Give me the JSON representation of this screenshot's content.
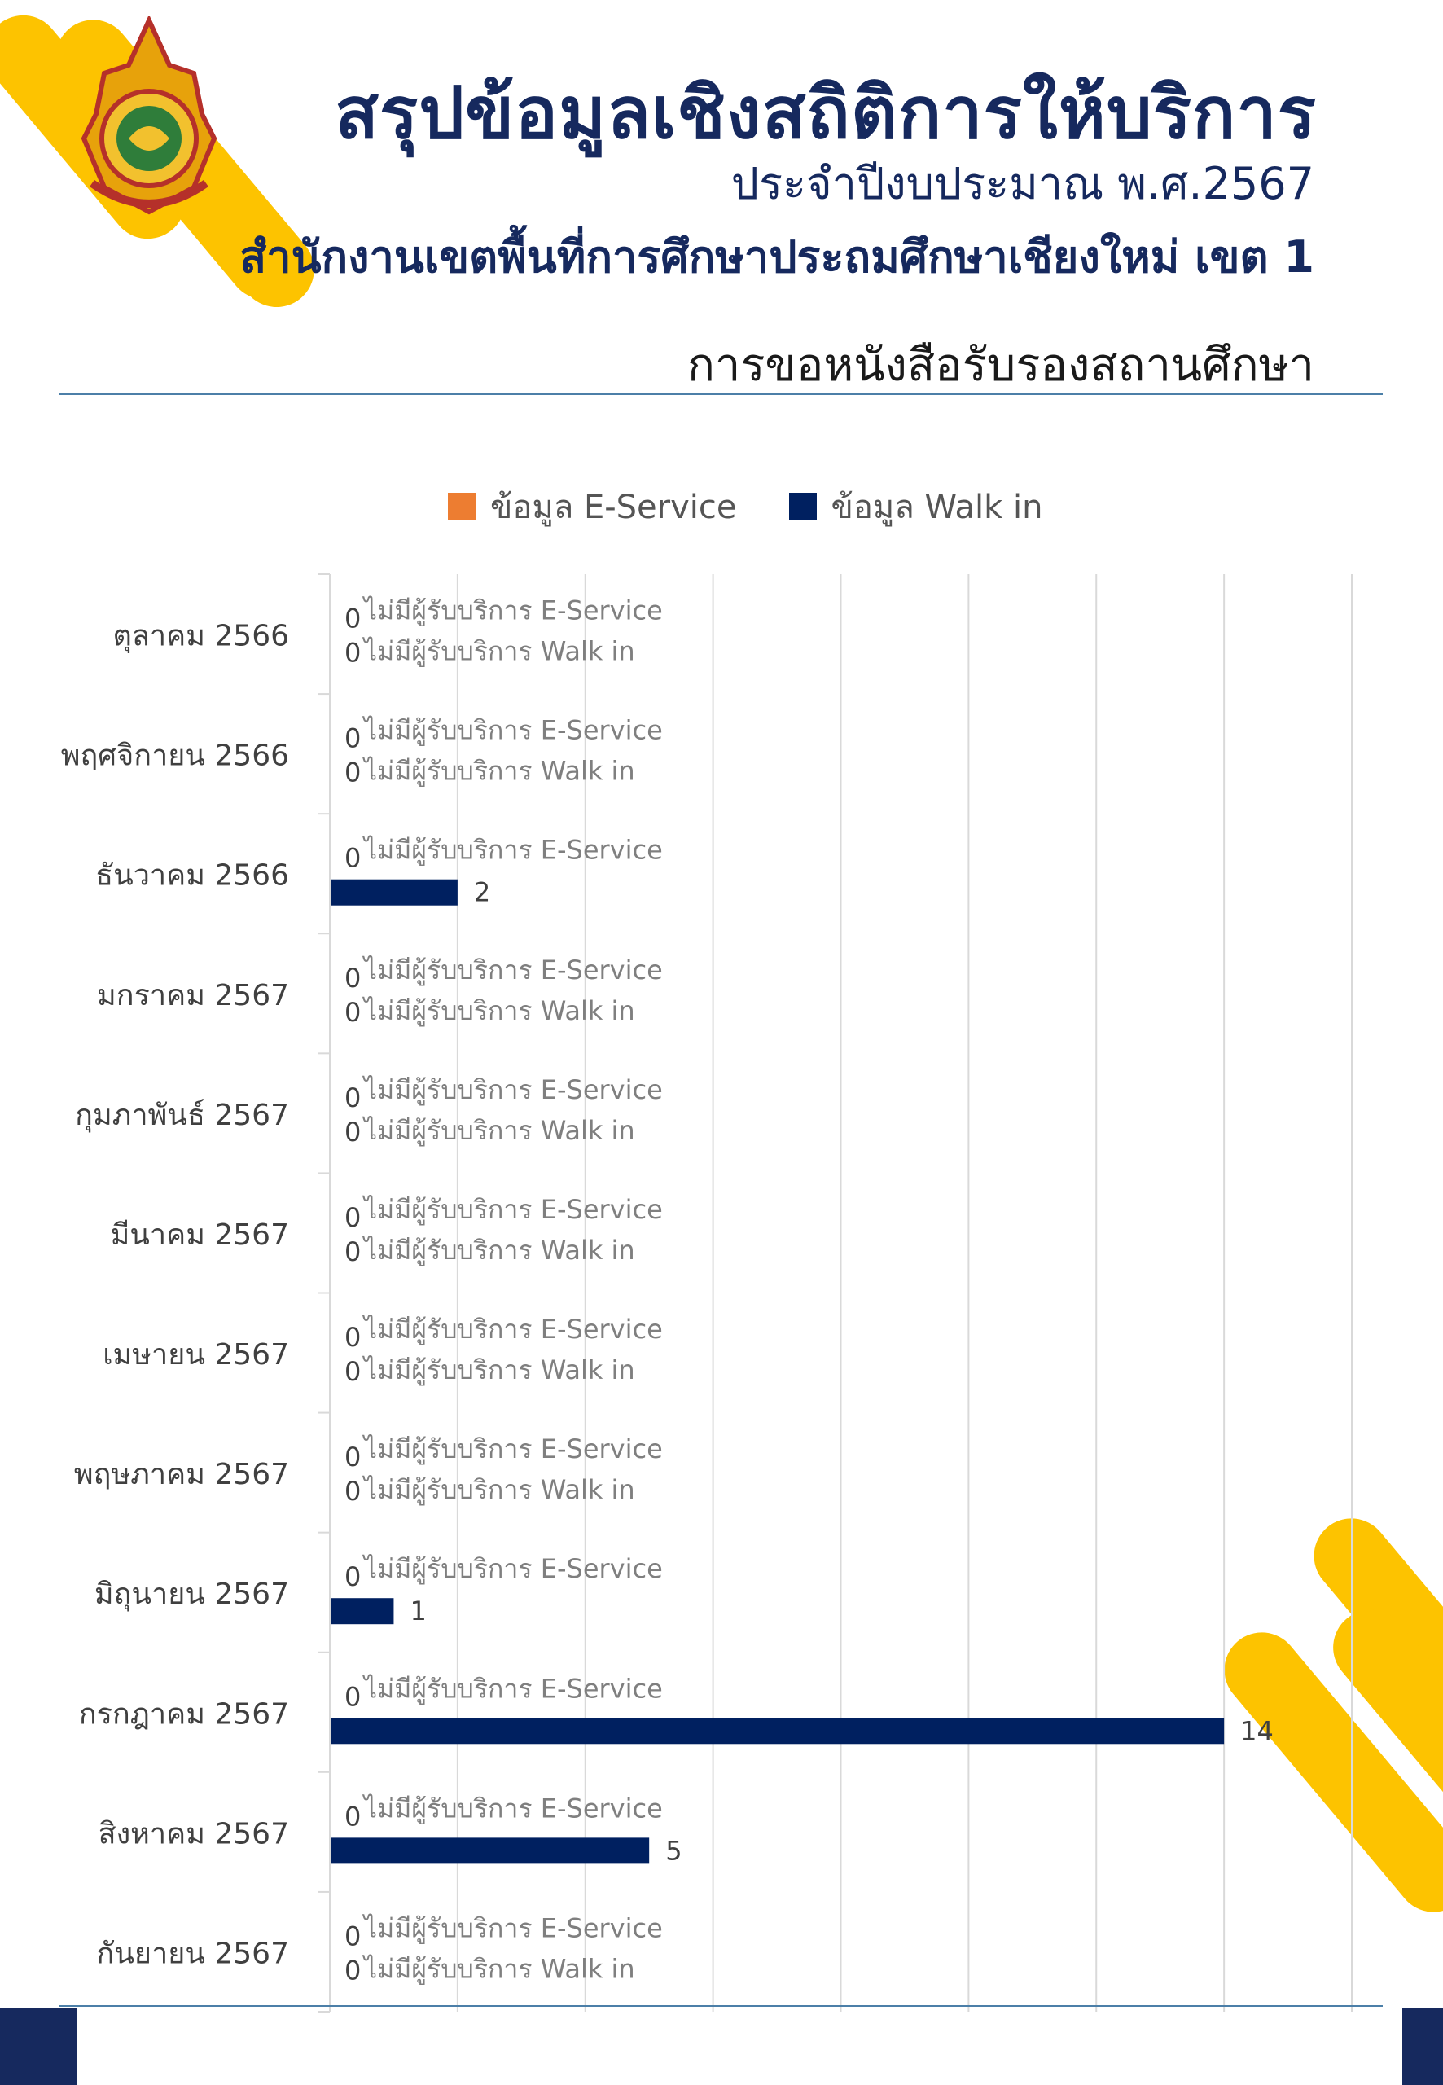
{
  "header": {
    "title": "สรุปข้อมูลเชิงสถิติการให้บริการ",
    "subtitle": "ประจำปีงบประมาณ พ.ศ.2567",
    "office": "สำนักงานเขตพื้นที่การศึกษาประถมศึกษาเชียงใหม่ เขต 1",
    "section": "การขอหนังสือรับรองสถานศึกษา"
  },
  "colors": {
    "accent": "#fdc300",
    "navy": "#16295e",
    "e_service": "#ed7d31",
    "walk_in": "#002060"
  },
  "chart_data": {
    "type": "bar",
    "orientation": "horizontal",
    "categories": [
      "ตุลาคม 2566",
      "พฤศจิกายน 2566",
      "ธันวาคม 2566",
      "มกราคม 2567",
      "กุมภาพันธ์ 2567",
      "มีนาคม 2567",
      "เมษายน 2567",
      "พฤษภาคม 2567",
      "มิถุนายน 2567",
      "กรกฎาคม 2567",
      "สิงหาคม 2567",
      "กันยายน 2567"
    ],
    "series": [
      {
        "name": "ข้อมูล E-Service",
        "values": [
          0,
          0,
          0,
          0,
          0,
          0,
          0,
          0,
          0,
          0,
          0,
          0
        ]
      },
      {
        "name": "ข้อมูล Walk in",
        "values": [
          0,
          0,
          2,
          0,
          0,
          0,
          0,
          0,
          1,
          14,
          5,
          0
        ]
      }
    ],
    "xlim": [
      0,
      16
    ],
    "grid": true,
    "legend": "top",
    "zero_labels": {
      "e_service": "ไม่มีผู้รับบริการ E-Service",
      "walk_in": "ไม่มีผู้รับบริการ Walk in"
    }
  }
}
